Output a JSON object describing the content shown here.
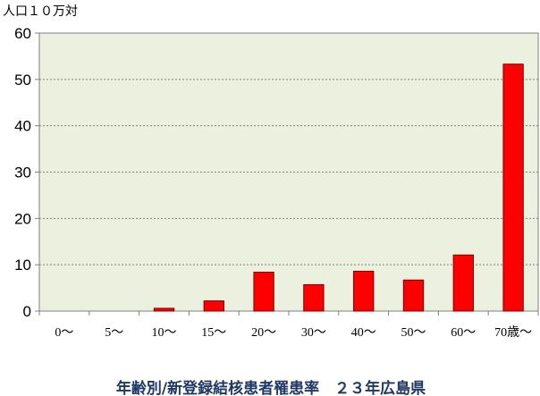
{
  "chart_data": {
    "type": "bar",
    "title": "年齢別/新登録結核患者罹患率　２３年広島県",
    "ylabel": "人口１０万対",
    "xlabel": "",
    "categories": [
      "0～",
      "5～",
      "10～",
      "15～",
      "20～",
      "30～",
      "40～",
      "50～",
      "60～",
      "70歳～"
    ],
    "series": [
      {
        "values": [
          0,
          0,
          0.6,
          2.2,
          8.4,
          5.7,
          8.6,
          6.7,
          12.1,
          53.3
        ]
      }
    ],
    "ylim": [
      0,
      60
    ],
    "yticks": [
      0,
      10,
      20,
      30,
      40,
      50,
      60
    ],
    "grid": true,
    "legend": "none",
    "colors": {
      "bar": "#ff0000",
      "bar_edge": "#7a0000",
      "plot_bg": "#ebf1de",
      "grid": "#7f7f7f",
      "axis": "#808080",
      "title": "#1f3864"
    }
  }
}
